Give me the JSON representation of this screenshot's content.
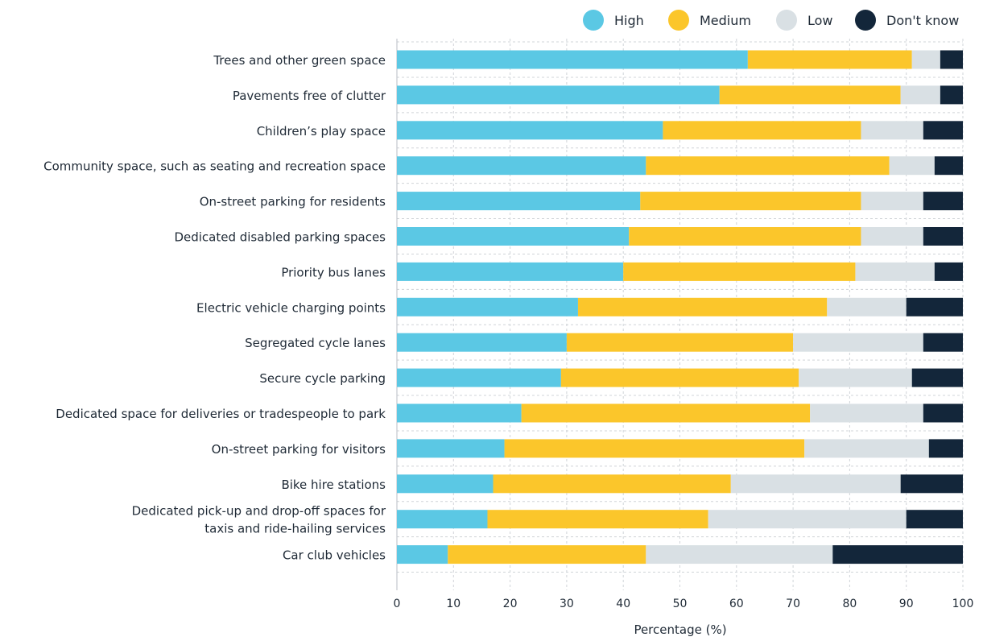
{
  "chart_data": {
    "type": "bar",
    "orientation": "horizontal",
    "stacked": true,
    "categories": [
      "Trees and other green space",
      "Pavements free of clutter",
      "Children’s play space",
      "Community space, such as seating and recreation space",
      "On-street parking for residents",
      "Dedicated disabled parking spaces",
      "Priority bus lanes",
      "Electric vehicle charging points",
      "Segregated cycle lanes",
      "Secure cycle parking",
      "Dedicated space for deliveries or tradespeople to park",
      "On-street parking for visitors",
      "Bike hire stations",
      "Dedicated pick-up and drop-off spaces for taxis and ride-hailing services",
      "Car club vehicles"
    ],
    "series": [
      {
        "name": "High",
        "color": "#5bc8e4",
        "values": [
          62,
          57,
          47,
          44,
          43,
          41,
          40,
          32,
          30,
          29,
          22,
          19,
          17,
          16,
          9
        ]
      },
      {
        "name": "Medium",
        "color": "#fbc62b",
        "values": [
          29,
          32,
          35,
          43,
          39,
          41,
          41,
          44,
          40,
          42,
          51,
          53,
          42,
          39,
          35
        ]
      },
      {
        "name": "Low",
        "color": "#d9e0e4",
        "values": [
          5,
          7,
          11,
          8,
          11,
          11,
          14,
          14,
          23,
          20,
          20,
          22,
          30,
          35,
          33
        ]
      },
      {
        "name": "Don't know",
        "color": "#13263a",
        "values": [
          4,
          4,
          7,
          5,
          7,
          7,
          5,
          10,
          7,
          9,
          7,
          6,
          11,
          10,
          23
        ]
      }
    ],
    "xlabel": "Percentage (%)",
    "ylabel": "",
    "xlim": [
      0,
      100
    ],
    "xticks": [
      0,
      10,
      20,
      30,
      40,
      50,
      60,
      70,
      80,
      90,
      100
    ],
    "grid": "vertical dashed",
    "legend_position": "top-right"
  }
}
